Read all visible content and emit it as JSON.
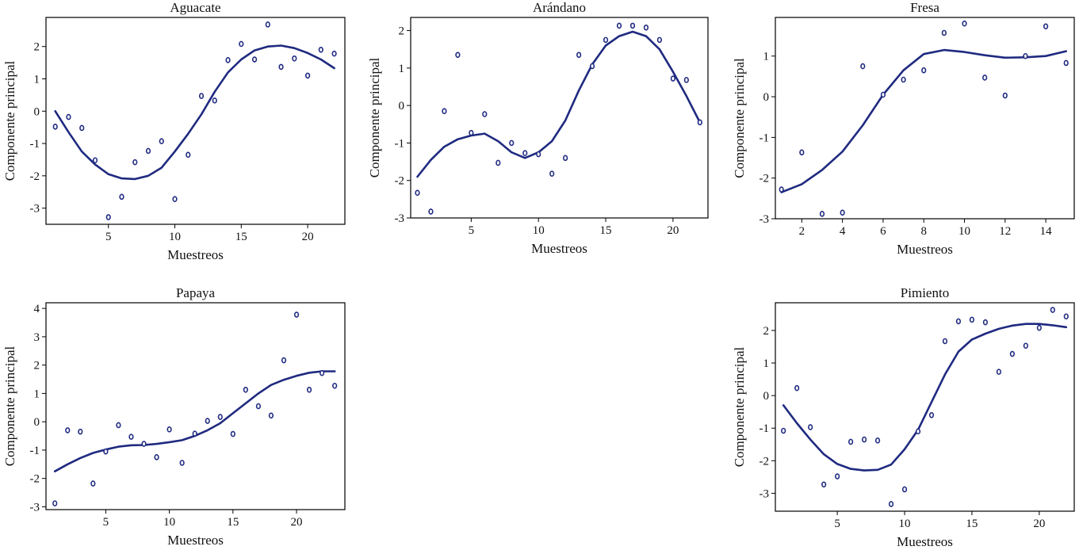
{
  "colors": {
    "series": "#1f2a80"
  },
  "chart_data": [
    {
      "id": "aguacate",
      "type": "scatter",
      "title": "Aguacate",
      "xlabel": "Muestreos",
      "ylabel": "Componente principal",
      "xlim": [
        0.3,
        22.8
      ],
      "ylim": [
        -3.5,
        2.9
      ],
      "xticks": [
        5,
        10,
        15,
        20
      ],
      "yticks": [
        -3,
        -2,
        -1,
        0,
        1,
        2
      ],
      "points": {
        "x": [
          1,
          2,
          3,
          4,
          5,
          6,
          7,
          8,
          9,
          10,
          11,
          12,
          13,
          14,
          15,
          16,
          17,
          18,
          19,
          20,
          21,
          22
        ],
        "y": [
          -0.48,
          -0.18,
          -0.52,
          -1.52,
          -3.28,
          -2.65,
          -1.58,
          -1.23,
          -0.93,
          -2.72,
          -1.35,
          0.47,
          0.33,
          1.58,
          2.08,
          1.6,
          2.68,
          1.37,
          1.63,
          1.1,
          1.9,
          1.78
        ]
      },
      "smooth": {
        "x": [
          1,
          2,
          3,
          4,
          5,
          6,
          7,
          8,
          9,
          10,
          11,
          12,
          13,
          14,
          15,
          16,
          17,
          18,
          19,
          20,
          21,
          22
        ],
        "y": [
          0.0,
          -0.65,
          -1.25,
          -1.65,
          -1.95,
          -2.08,
          -2.1,
          -2.0,
          -1.75,
          -1.25,
          -0.7,
          -0.1,
          0.6,
          1.2,
          1.6,
          1.88,
          2.0,
          2.03,
          1.95,
          1.8,
          1.6,
          1.33
        ]
      }
    },
    {
      "id": "arandano",
      "type": "scatter",
      "title": "Arándano",
      "xlabel": "Muestreos",
      "ylabel": "Componente principal",
      "xlim": [
        0.5,
        22.6
      ],
      "ylim": [
        -3.0,
        2.35
      ],
      "xticks": [
        5,
        10,
        15,
        20
      ],
      "yticks": [
        -3,
        -2,
        -1,
        0,
        1,
        2
      ],
      "points": {
        "x": [
          1,
          2,
          3,
          4,
          5,
          6,
          7,
          8,
          9,
          10,
          11,
          12,
          13,
          14,
          15,
          16,
          17,
          18,
          19,
          20,
          21,
          22
        ],
        "y": [
          -2.33,
          -2.83,
          -0.15,
          1.35,
          -0.73,
          -0.23,
          -1.53,
          -1.0,
          -1.27,
          -1.3,
          -1.82,
          -1.4,
          1.35,
          1.05,
          1.75,
          2.13,
          2.13,
          2.08,
          1.75,
          0.72,
          0.68,
          -0.45
        ]
      },
      "smooth": {
        "x": [
          1,
          2,
          3,
          4,
          5,
          6,
          7,
          8,
          9,
          10,
          11,
          12,
          13,
          14,
          15,
          16,
          17,
          18,
          19,
          20,
          21,
          22
        ],
        "y": [
          -1.9,
          -1.45,
          -1.1,
          -0.9,
          -0.8,
          -0.75,
          -0.95,
          -1.25,
          -1.4,
          -1.25,
          -0.95,
          -0.4,
          0.4,
          1.1,
          1.6,
          1.85,
          1.97,
          1.85,
          1.5,
          0.9,
          0.25,
          -0.45
        ]
      }
    },
    {
      "id": "fresa",
      "type": "scatter",
      "title": "Fresa",
      "xlabel": "Muestreos",
      "ylabel": "Componente principal",
      "xlim": [
        0.7,
        15.4
      ],
      "ylim": [
        -3.0,
        1.95
      ],
      "xticks": [
        2,
        4,
        6,
        8,
        10,
        12,
        14
      ],
      "yticks": [
        -3,
        -2,
        -1,
        0,
        1
      ],
      "points": {
        "x": [
          1,
          2,
          3,
          4,
          5,
          6,
          7,
          8,
          9,
          10,
          11,
          12,
          13,
          14,
          15
        ],
        "y": [
          -2.28,
          -1.37,
          -2.88,
          -2.85,
          0.75,
          0.05,
          0.42,
          0.65,
          1.57,
          1.8,
          0.47,
          0.03,
          1.0,
          1.73,
          0.83
        ]
      },
      "smooth": {
        "x": [
          1,
          2,
          3,
          4,
          5,
          6,
          7,
          8,
          9,
          10,
          11,
          12,
          13,
          14,
          15
        ],
        "y": [
          -2.35,
          -2.15,
          -1.8,
          -1.35,
          -0.7,
          0.05,
          0.65,
          1.05,
          1.15,
          1.1,
          1.02,
          0.96,
          0.97,
          1.0,
          1.12
        ]
      }
    },
    {
      "id": "papaya",
      "type": "scatter",
      "title": "Papaya",
      "xlabel": "Muestreos",
      "ylabel": "Componente principal",
      "xlim": [
        0.3,
        23.8
      ],
      "ylim": [
        -3.1,
        4.2
      ],
      "xticks": [
        5,
        10,
        15,
        20
      ],
      "yticks": [
        -3,
        -2,
        -1,
        0,
        1,
        2,
        3,
        4
      ],
      "points": {
        "x": [
          1,
          2,
          3,
          4,
          5,
          6,
          7,
          8,
          9,
          10,
          11,
          12,
          13,
          14,
          15,
          16,
          17,
          18,
          19,
          20,
          21,
          22,
          23
        ],
        "y": [
          -2.88,
          -0.3,
          -0.35,
          -2.18,
          -1.05,
          -0.12,
          -0.53,
          -0.78,
          -1.25,
          -0.27,
          -1.45,
          -0.42,
          0.03,
          0.17,
          -0.43,
          1.13,
          0.55,
          0.22,
          2.17,
          3.78,
          1.13,
          1.72,
          1.27
        ]
      },
      "smooth": {
        "x": [
          1,
          2,
          3,
          4,
          5,
          6,
          7,
          8,
          9,
          10,
          11,
          12,
          13,
          14,
          15,
          16,
          17,
          18,
          19,
          20,
          21,
          22,
          23
        ],
        "y": [
          -1.75,
          -1.5,
          -1.28,
          -1.1,
          -0.98,
          -0.88,
          -0.83,
          -0.82,
          -0.78,
          -0.72,
          -0.65,
          -0.5,
          -0.3,
          -0.05,
          0.3,
          0.65,
          1.0,
          1.3,
          1.48,
          1.62,
          1.73,
          1.78,
          1.78
        ]
      }
    },
    {
      "id": "pimiento",
      "type": "scatter",
      "title": "Pimiento",
      "xlabel": "Muestreos",
      "ylabel": "Componente principal",
      "xlim": [
        0.4,
        22.6
      ],
      "ylim": [
        -3.55,
        2.85
      ],
      "xticks": [
        5,
        10,
        15,
        20
      ],
      "yticks": [
        -3,
        -2,
        -1,
        0,
        1,
        2
      ],
      "points": {
        "x": [
          1,
          2,
          3,
          4,
          5,
          6,
          7,
          8,
          9,
          10,
          11,
          12,
          13,
          14,
          15,
          16,
          17,
          18,
          19,
          20,
          21,
          22
        ],
        "y": [
          -1.08,
          0.23,
          -0.97,
          -2.73,
          -2.48,
          -1.42,
          -1.35,
          -1.38,
          -3.33,
          -2.88,
          -1.1,
          -0.6,
          1.67,
          2.28,
          2.33,
          2.25,
          0.73,
          1.28,
          1.53,
          2.08,
          2.63,
          2.43
        ]
      },
      "smooth": {
        "x": [
          1,
          2,
          3,
          4,
          5,
          6,
          7,
          8,
          9,
          10,
          11,
          12,
          13,
          14,
          15,
          16,
          17,
          18,
          19,
          20,
          21,
          22
        ],
        "y": [
          -0.3,
          -0.85,
          -1.35,
          -1.8,
          -2.1,
          -2.25,
          -2.3,
          -2.28,
          -2.12,
          -1.65,
          -1.05,
          -0.2,
          0.65,
          1.35,
          1.72,
          1.9,
          2.05,
          2.15,
          2.2,
          2.2,
          2.16,
          2.1
        ]
      }
    }
  ]
}
